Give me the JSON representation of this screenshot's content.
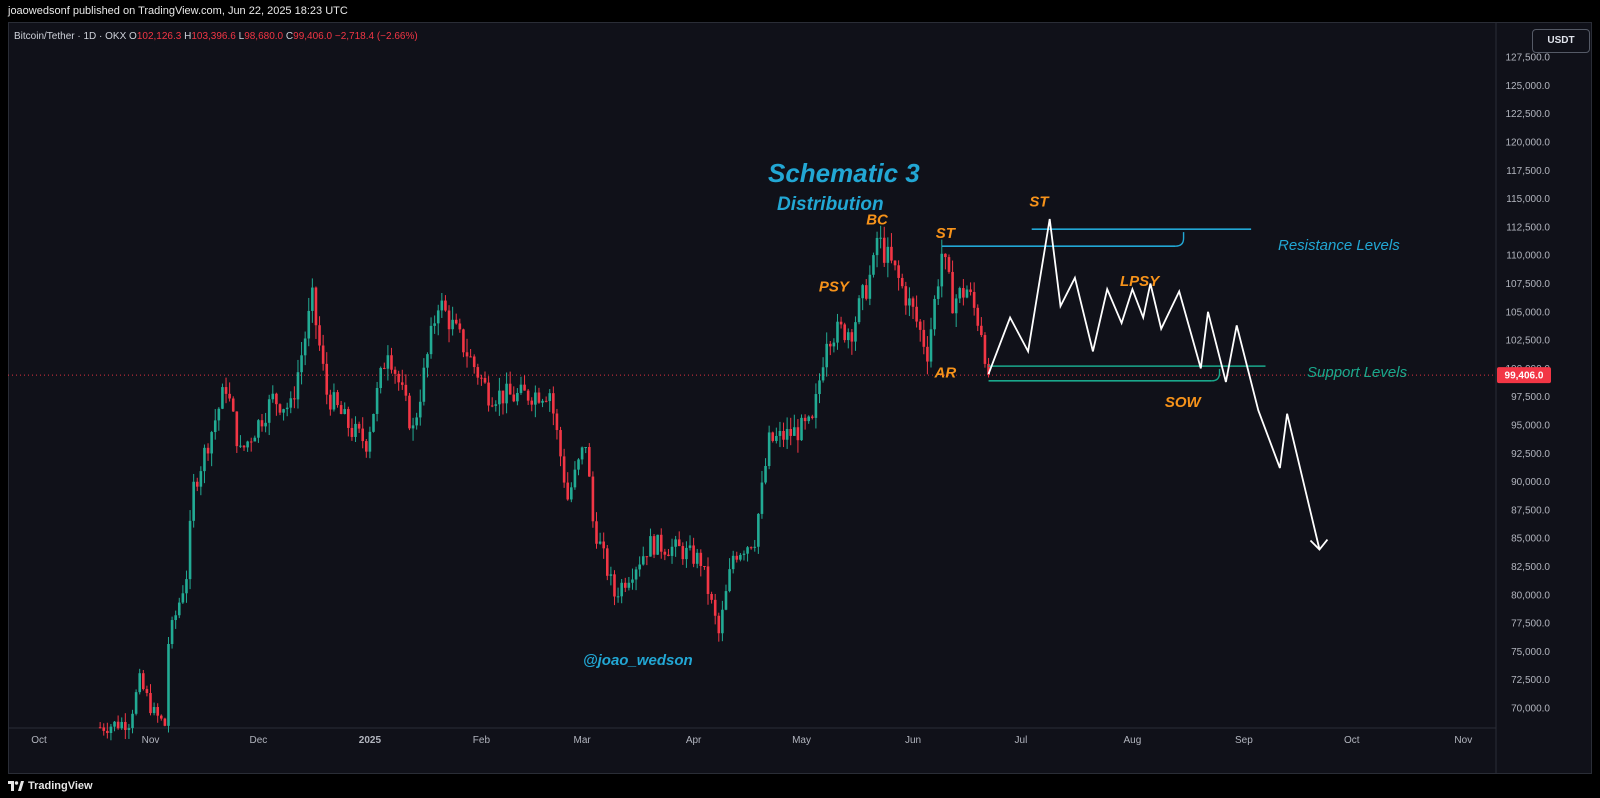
{
  "header": {
    "published": "joaowedsonf published on TradingView.com, Jun 22, 2025 18:23 UTC"
  },
  "legend": {
    "symbol": "Bitcoin/Tether · 1D · OKX",
    "o_label": "O",
    "o": "102,126.3",
    "h_label": "H",
    "h": "103,396.6",
    "l_label": "L",
    "l": "98,680.0",
    "c_label": "C",
    "c": "99,406.0",
    "change": "−2,718.4 (−2.66%)"
  },
  "currency": "USDT",
  "footer": {
    "brand": "TradingView"
  },
  "colors": {
    "up": "#22ab94",
    "down": "#f23645",
    "background": "#101119",
    "annotation_orange": "#f7931a",
    "annotation_cyan": "#22a7d4",
    "support_green": "#1aa88c",
    "projection": "#ffffff"
  },
  "chart_data": {
    "type": "candlestick",
    "title": "Schematic 3",
    "subtitle": "Distribution",
    "watermark": "@joao_wedson",
    "last_price": 99406.0,
    "last_price_label": "99,406.0",
    "ylim": [
      68000,
      129000
    ],
    "y_ticks": [
      70000,
      72500,
      75000,
      77500,
      80000,
      82500,
      85000,
      87500,
      90000,
      92500,
      95000,
      97500,
      100000,
      102500,
      105000,
      107500,
      110000,
      112500,
      115000,
      117500,
      120000,
      122500,
      125000,
      127500
    ],
    "y_tick_labels": [
      "70,000.0",
      "72,500.0",
      "75,000.0",
      "77,500.0",
      "80,000.0",
      "82,500.0",
      "85,000.0",
      "87,500.0",
      "90,000.0",
      "92,500.0",
      "95,000.0",
      "97,500.0",
      "100,000.0",
      "102,500.0",
      "105,000.0",
      "107,500.0",
      "110,000.0",
      "112,500.0",
      "115,000.0",
      "117,500.0",
      "120,000.0",
      "122,500.0",
      "125,000.0",
      "127,500.0"
    ],
    "x_axis": {
      "start": "2024-10-01",
      "end": "2025-11-01",
      "ticks": [
        {
          "date": "2024-10-01",
          "label": "Oct"
        },
        {
          "date": "2024-11-01",
          "label": "Nov"
        },
        {
          "date": "2024-12-01",
          "label": "Dec"
        },
        {
          "date": "2025-01-01",
          "label": "2025"
        },
        {
          "date": "2025-02-01",
          "label": "Feb"
        },
        {
          "date": "2025-03-01",
          "label": "Mar"
        },
        {
          "date": "2025-04-01",
          "label": "Apr"
        },
        {
          "date": "2025-05-01",
          "label": "May"
        },
        {
          "date": "2025-06-01",
          "label": "Jun"
        },
        {
          "date": "2025-07-01",
          "label": "Jul"
        },
        {
          "date": "2025-08-01",
          "label": "Aug"
        },
        {
          "date": "2025-09-01",
          "label": "Sep"
        },
        {
          "date": "2025-10-01",
          "label": "Oct"
        },
        {
          "date": "2025-11-01",
          "label": "Nov"
        }
      ]
    },
    "close_path": [
      {
        "date": "2024-10-18",
        "value": 68300
      },
      {
        "date": "2024-10-26",
        "value": 68800
      },
      {
        "date": "2024-10-29",
        "value": 72300
      },
      {
        "date": "2024-11-02",
        "value": 69500
      },
      {
        "date": "2024-11-05",
        "value": 68500
      },
      {
        "date": "2024-11-06",
        "value": 75800
      },
      {
        "date": "2024-11-11",
        "value": 81800
      },
      {
        "date": "2024-11-13",
        "value": 89500
      },
      {
        "date": "2024-11-22",
        "value": 98500
      },
      {
        "date": "2024-11-26",
        "value": 92500
      },
      {
        "date": "2024-12-05",
        "value": 97300
      },
      {
        "date": "2024-12-10",
        "value": 96500
      },
      {
        "date": "2024-12-16",
        "value": 106000
      },
      {
        "date": "2024-12-20",
        "value": 97800
      },
      {
        "date": "2024-12-27",
        "value": 94500
      },
      {
        "date": "2024-12-31",
        "value": 93500
      },
      {
        "date": "2025-01-06",
        "value": 102000
      },
      {
        "date": "2025-01-13",
        "value": 94500
      },
      {
        "date": "2025-01-20",
        "value": 106000
      },
      {
        "date": "2025-01-27",
        "value": 102000
      },
      {
        "date": "2025-02-03",
        "value": 97800
      },
      {
        "date": "2025-02-10",
        "value": 97500
      },
      {
        "date": "2025-02-20",
        "value": 98000
      },
      {
        "date": "2025-02-25",
        "value": 88500
      },
      {
        "date": "2025-03-02",
        "value": 93500
      },
      {
        "date": "2025-03-04",
        "value": 86500
      },
      {
        "date": "2025-03-10",
        "value": 80000
      },
      {
        "date": "2025-03-20",
        "value": 84500
      },
      {
        "date": "2025-03-28",
        "value": 84000
      },
      {
        "date": "2025-04-03",
        "value": 83000
      },
      {
        "date": "2025-04-08",
        "value": 76500
      },
      {
        "date": "2025-04-12",
        "value": 83500
      },
      {
        "date": "2025-04-18",
        "value": 85000
      },
      {
        "date": "2025-04-22",
        "value": 93500
      },
      {
        "date": "2025-04-30",
        "value": 94500
      },
      {
        "date": "2025-05-04",
        "value": 95000
      },
      {
        "date": "2025-05-08",
        "value": 103000
      },
      {
        "date": "2025-05-15",
        "value": 103500
      },
      {
        "date": "2025-05-21",
        "value": 109000
      },
      {
        "date": "2025-05-22",
        "value": 111500
      },
      {
        "date": "2025-05-27",
        "value": 108500
      },
      {
        "date": "2025-06-01",
        "value": 105000
      },
      {
        "date": "2025-06-05",
        "value": 101500
      },
      {
        "date": "2025-06-09",
        "value": 110200
      },
      {
        "date": "2025-06-12",
        "value": 106000
      },
      {
        "date": "2025-06-16",
        "value": 107000
      },
      {
        "date": "2025-06-20",
        "value": 103500
      },
      {
        "date": "2025-06-22",
        "value": 99406
      }
    ],
    "annotations": [
      {
        "label": "PSY",
        "date": "2025-05-10",
        "value": 106800,
        "color": "orange"
      },
      {
        "label": "BC",
        "date": "2025-05-22",
        "value": 112700,
        "color": "orange"
      },
      {
        "label": "ST",
        "date": "2025-06-10",
        "value": 111500,
        "color": "orange"
      },
      {
        "label": "AR",
        "date": "2025-06-10",
        "value": 99200,
        "color": "orange"
      },
      {
        "label": "ST",
        "date": "2025-07-06",
        "value": 114300,
        "color": "orange"
      },
      {
        "label": "LPSY",
        "date": "2025-08-03",
        "value": 107300,
        "color": "orange"
      },
      {
        "label": "SOW",
        "date": "2025-08-15",
        "value": 96600,
        "color": "orange"
      }
    ],
    "resistance_label": "Resistance Levels",
    "support_label": "Support Levels",
    "resistance_levels": [
      {
        "from": "2025-06-09",
        "to": "2025-08-13",
        "value": 110800
      },
      {
        "from": "2025-07-04",
        "to": "2025-09-03",
        "value": 112300
      }
    ],
    "support_levels": [
      {
        "from": "2025-06-22",
        "to": "2025-08-23",
        "value": 98900
      },
      {
        "from": "2025-06-22",
        "to": "2025-09-07",
        "value": 100200
      }
    ],
    "projection": [
      {
        "date": "2025-06-22",
        "value": 99500
      },
      {
        "date": "2025-06-28",
        "value": 104500
      },
      {
        "date": "2025-07-03",
        "value": 101500
      },
      {
        "date": "2025-07-09",
        "value": 113200
      },
      {
        "date": "2025-07-12",
        "value": 105500
      },
      {
        "date": "2025-07-16",
        "value": 108000
      },
      {
        "date": "2025-07-21",
        "value": 101500
      },
      {
        "date": "2025-07-25",
        "value": 107000
      },
      {
        "date": "2025-07-29",
        "value": 104000
      },
      {
        "date": "2025-08-01",
        "value": 107000
      },
      {
        "date": "2025-08-04",
        "value": 104500
      },
      {
        "date": "2025-08-06",
        "value": 107500
      },
      {
        "date": "2025-08-09",
        "value": 103500
      },
      {
        "date": "2025-08-14",
        "value": 106800
      },
      {
        "date": "2025-08-20",
        "value": 100000
      },
      {
        "date": "2025-08-22",
        "value": 105000
      },
      {
        "date": "2025-08-27",
        "value": 98800
      },
      {
        "date": "2025-08-30",
        "value": 103800
      },
      {
        "date": "2025-09-05",
        "value": 96300
      },
      {
        "date": "2025-09-11",
        "value": 91200
      },
      {
        "date": "2025-09-13",
        "value": 96000
      },
      {
        "date": "2025-09-22",
        "value": 84000
      }
    ]
  }
}
